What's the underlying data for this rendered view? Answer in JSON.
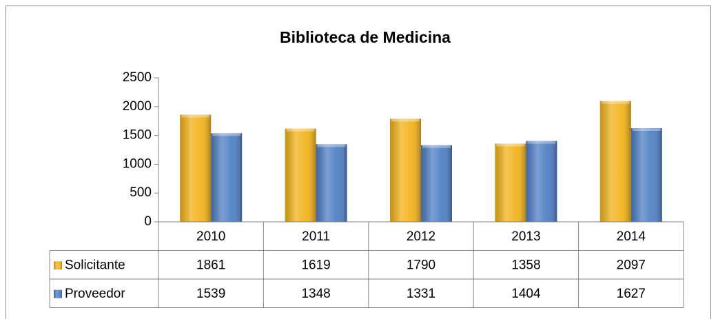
{
  "chart_data": {
    "type": "bar",
    "title": "Biblioteca de Medicina",
    "categories": [
      "2010",
      "2011",
      "2012",
      "2013",
      "2014"
    ],
    "series": [
      {
        "name": "Solicitante",
        "color": "#f2b31c",
        "values": [
          1861,
          1619,
          1790,
          1358,
          2097
        ]
      },
      {
        "name": "Proveedor",
        "color": "#4f7fc4",
        "values": [
          1539,
          1348,
          1331,
          1404,
          1627
        ]
      }
    ],
    "ylim": [
      0,
      2500
    ],
    "yticks": [
      0,
      500,
      1000,
      1500,
      2000,
      2500
    ],
    "grid": false,
    "data_table": true
  }
}
